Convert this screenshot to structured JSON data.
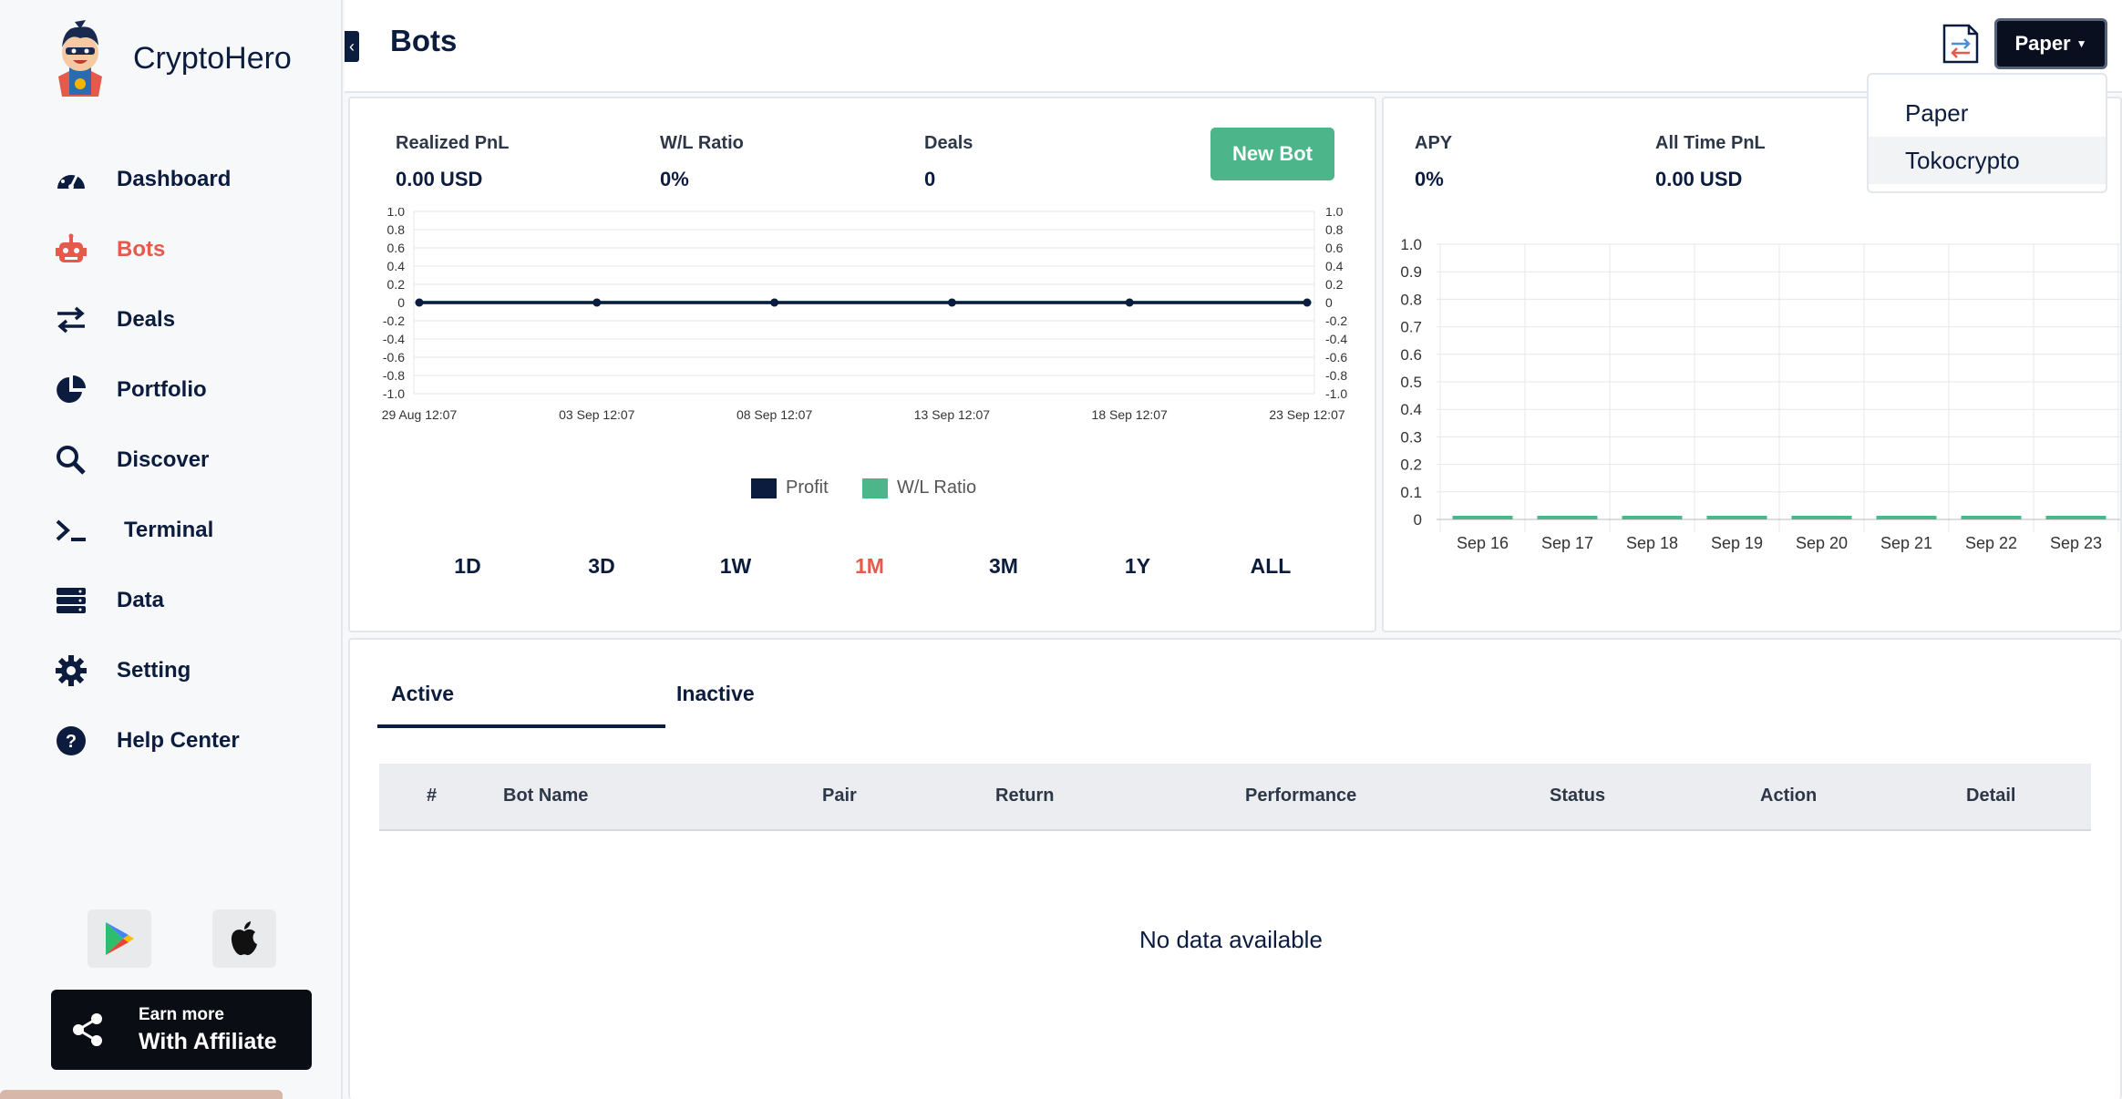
{
  "app": {
    "name": "CryptoHero"
  },
  "sidebar": {
    "items": [
      {
        "label": "Dashboard",
        "icon": "gauge-icon"
      },
      {
        "label": "Bots",
        "icon": "robot-icon",
        "active": true
      },
      {
        "label": "Deals",
        "icon": "arrows-swap-icon"
      },
      {
        "label": "Portfolio",
        "icon": "pie-icon"
      },
      {
        "label": "Discover",
        "icon": "search-icon"
      },
      {
        "label": "Terminal",
        "icon": "terminal-icon"
      },
      {
        "label": "Data",
        "icon": "database-icon"
      },
      {
        "label": "Setting",
        "icon": "gear-icon"
      },
      {
        "label": "Help Center",
        "icon": "help-icon"
      }
    ],
    "affiliate": {
      "line1": "Earn more",
      "line2": "With Affiliate"
    }
  },
  "header": {
    "title": "Bots",
    "account_button": "Paper",
    "dropdown": [
      "Paper",
      "Tokocrypto"
    ]
  },
  "summary": {
    "realized_pnl": {
      "label": "Realized PnL",
      "value": "0.00 USD"
    },
    "wl_ratio": {
      "label": "W/L Ratio",
      "value": "0%"
    },
    "deals": {
      "label": "Deals",
      "value": "0"
    },
    "new_bot": "New Bot",
    "apy": {
      "label": "APY",
      "value": "0%"
    },
    "all_time_pnl": {
      "label": "All Time PnL",
      "value": "0.00 USD"
    }
  },
  "ranges": [
    "1D",
    "3D",
    "1W",
    "1M",
    "3M",
    "1Y",
    "ALL"
  ],
  "active_range": "1M",
  "table": {
    "tabs": [
      "Active",
      "Inactive"
    ],
    "columns": [
      "#",
      "Bot Name",
      "Pair",
      "Return",
      "Performance",
      "Status",
      "Action",
      "Detail"
    ],
    "empty": "No data available"
  },
  "chart_data": [
    {
      "type": "line",
      "x": [
        "29 Aug 12:07",
        "03 Sep 12:07",
        "08 Sep 12:07",
        "13 Sep 12:07",
        "18 Sep 12:07",
        "23 Sep 12:07"
      ],
      "series": [
        {
          "name": "Profit",
          "values": [
            0,
            0,
            0,
            0,
            0,
            0
          ],
          "color": "#0b1c3f"
        },
        {
          "name": "W/L Ratio",
          "values": [
            0,
            0,
            0,
            0,
            0,
            0
          ],
          "color": "#4cb68a"
        }
      ],
      "yticks": [
        "1.0",
        "0.8",
        "0.6",
        "0.4",
        "0.2",
        "0",
        "-0.2",
        "-0.4",
        "-0.6",
        "-0.8",
        "-1.0"
      ],
      "ylim": [
        -1,
        1
      ]
    },
    {
      "type": "bar",
      "categories": [
        "Sep 16",
        "Sep 17",
        "Sep 18",
        "Sep 19",
        "Sep 20",
        "Sep 21",
        "Sep 22",
        "Sep 23"
      ],
      "values": [
        0,
        0,
        0,
        0,
        0,
        0,
        0,
        0
      ],
      "yticks": [
        "1.0",
        "0.9",
        "0.8",
        "0.7",
        "0.6",
        "0.5",
        "0.4",
        "0.3",
        "0.2",
        "0.1",
        "0"
      ],
      "ylim": [
        0,
        1
      ],
      "color": "#4cb68a"
    }
  ]
}
